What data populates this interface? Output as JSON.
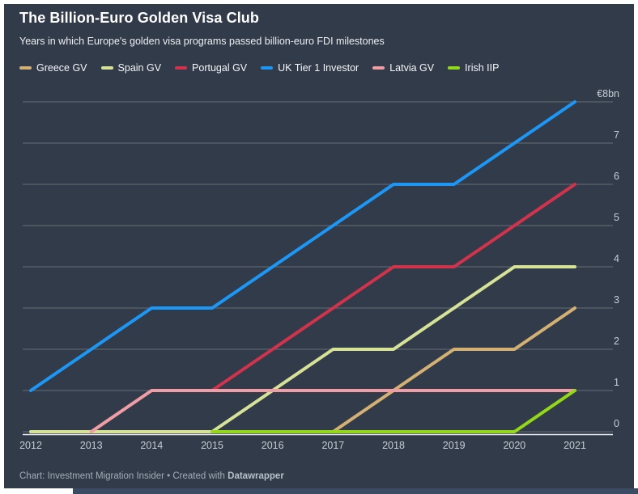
{
  "page": {
    "background": "#ffffff",
    "card_background": "#323b49",
    "grid_color": "rgba(255,255,255,0.25)",
    "axis_line_color": "#eef1f4",
    "tick_text_color": "#c6cdd6"
  },
  "header": {
    "title": "The Billion-Euro Golden Visa Club",
    "subtitle": "Years in which Europe's golden visa programs passed billion-euro FDI milestones"
  },
  "chart_data": {
    "type": "line",
    "title": "The Billion-Euro Golden Visa Club",
    "subtitle": "Years in which Europe's golden visa programs passed billion-euro FDI milestones",
    "x": [
      2012,
      2013,
      2014,
      2015,
      2016,
      2017,
      2018,
      2019,
      2020,
      2021
    ],
    "x_ticks": [
      "2012",
      "2013",
      "2014",
      "2015",
      "2016",
      "2017",
      "2018",
      "2019",
      "2020",
      "2021"
    ],
    "series": [
      {
        "name": "Greece GV",
        "color": "#d5b073",
        "values": [
          null,
          null,
          null,
          null,
          null,
          0,
          1,
          2,
          2,
          3
        ]
      },
      {
        "name": "Spain GV",
        "color": "#d6e397",
        "values": [
          0,
          0,
          0,
          0,
          1,
          2,
          2,
          3,
          4,
          4
        ]
      },
      {
        "name": "Portugal GV",
        "color": "#d2334c",
        "values": [
          null,
          null,
          null,
          1,
          2,
          3,
          4,
          4,
          5,
          6
        ]
      },
      {
        "name": "UK Tier 1 Investor",
        "color": "#1d97f5",
        "values": [
          1,
          2,
          3,
          3,
          4,
          5,
          6,
          6,
          7,
          8
        ]
      },
      {
        "name": "Latvia GV",
        "color": "#f19da5",
        "values": [
          null,
          0,
          1,
          1,
          1,
          1,
          1,
          1,
          1,
          1
        ]
      },
      {
        "name": "Irish IIP",
        "color": "#93d918",
        "values": [
          null,
          null,
          null,
          0,
          0,
          0,
          0,
          0,
          0,
          1
        ]
      }
    ],
    "y_ticks": [
      {
        "value": 8,
        "label": "€8bn"
      },
      {
        "value": 7,
        "label": "7"
      },
      {
        "value": 6,
        "label": "6"
      },
      {
        "value": 5,
        "label": "5"
      },
      {
        "value": 4,
        "label": "4"
      },
      {
        "value": 3,
        "label": "3"
      },
      {
        "value": 2,
        "label": "2"
      },
      {
        "value": 1,
        "label": "1"
      },
      {
        "value": 0,
        "label": "0"
      }
    ],
    "ylim": [
      0,
      8
    ],
    "xlabel": "",
    "ylabel": "",
    "grid": true,
    "y_axis_side": "right",
    "legend_position": "top"
  },
  "footer": {
    "credit_prefix": "Chart: Investment Migration Insider • Created with ",
    "credit_brand": "Datawrapper"
  }
}
